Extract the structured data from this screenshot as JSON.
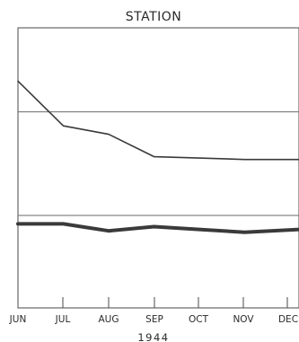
{
  "chart_data": {
    "type": "line",
    "title": "STATION",
    "xlabel": "1944",
    "ylabel": "",
    "categories": [
      "JUN",
      "JUL",
      "AUG",
      "SEP",
      "OCT",
      "NOV",
      "DEC"
    ],
    "ylim": [
      0,
      100
    ],
    "grid": false,
    "reference_lines": [
      70,
      33
    ],
    "series": [
      {
        "values": [
          81,
          65,
          62,
          54,
          53.5,
          53,
          53
        ],
        "line_weight": "thin",
        "color": "#3a3a3a"
      },
      {
        "values": [
          30,
          30,
          27.5,
          29,
          28,
          27,
          28
        ],
        "line_weight": "heavy",
        "color": "#3a3a3a"
      }
    ]
  }
}
